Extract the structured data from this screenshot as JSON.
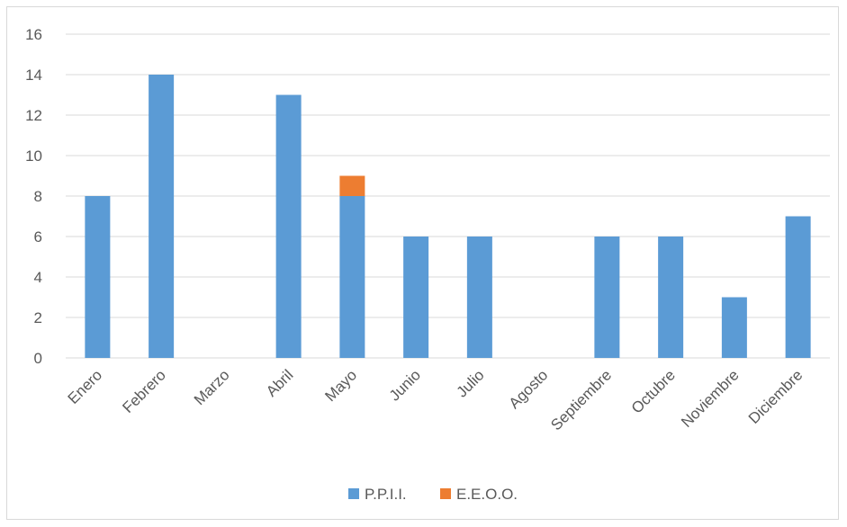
{
  "chart_data": {
    "type": "bar",
    "stacked": true,
    "categories": [
      "Enero",
      "Febrero",
      "Marzo",
      "Abril",
      "Mayo",
      "Junio",
      "Julio",
      "Agosto",
      "Septiembre",
      "Octubre",
      "Noviembre",
      "Diciembre"
    ],
    "series": [
      {
        "name": "P.P.I.I.",
        "color": "#5b9bd5",
        "values": [
          8,
          14,
          0,
          13,
          8,
          6,
          6,
          0,
          6,
          6,
          3,
          7
        ]
      },
      {
        "name": "E.E.O.O.",
        "color": "#ed7d31",
        "values": [
          0,
          0,
          0,
          0,
          1,
          0,
          0,
          0,
          0,
          0,
          0,
          0
        ]
      }
    ],
    "ylim": [
      0,
      16
    ],
    "yticks": [
      "0",
      "2",
      "4",
      "6",
      "8",
      "10",
      "12",
      "14",
      "16"
    ],
    "grid": true,
    "legend_position": "bottom",
    "title": "",
    "xlabel": "",
    "ylabel": ""
  }
}
